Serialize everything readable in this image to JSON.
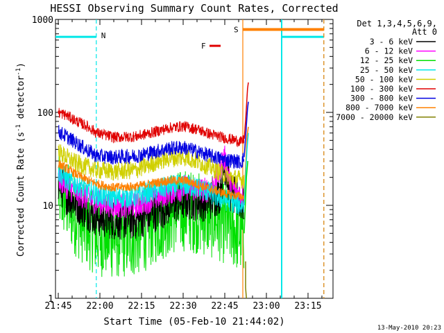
{
  "chart_data": {
    "type": "line",
    "title": "HESSI Observing Summary Count Rates, Corrected",
    "xlabel": "Start Time (05-Feb-10 21:44:02)",
    "ylabel_main": "Corrected Count Rate (s",
    "ylabel_sup1": "-1",
    "ylabel_mid": " detector",
    "ylabel_sup2": "-1",
    "ylabel_end": ")",
    "yscale": "log",
    "ylim": [
      1,
      1000
    ],
    "xlim_minutes": [
      -1,
      99
    ],
    "x_ticks": [
      {
        "m": 0,
        "label": "21:45"
      },
      {
        "m": 15,
        "label": "22:00"
      },
      {
        "m": 30,
        "label": "22:15"
      },
      {
        "m": 45,
        "label": "22:30"
      },
      {
        "m": 60,
        "label": "22:45"
      },
      {
        "m": 75,
        "label": "23:00"
      },
      {
        "m": 90,
        "label": "23:15"
      }
    ],
    "y_ticks": [
      {
        "v": 1,
        "label": "1"
      },
      {
        "v": 10,
        "label": "10"
      },
      {
        "v": 100,
        "label": "100"
      },
      {
        "v": 1000,
        "label": "1000"
      }
    ],
    "timestamp": "13-May-2010 20:23",
    "legend": {
      "header1": "Det 1,3,4,5,6,9,",
      "header2": "Att 0",
      "placement": "right",
      "entries": [
        {
          "label": "3 - 6 keV",
          "color": "#000000"
        },
        {
          "label": "6 - 12 keV",
          "color": "#ff00ff"
        },
        {
          "label": "12 - 25 keV",
          "color": "#00e000"
        },
        {
          "label": "25 - 50 keV",
          "color": "#00e8e8"
        },
        {
          "label": "50 - 100 keV",
          "color": "#d0d000"
        },
        {
          "label": "100 - 300 keV",
          "color": "#e00000"
        },
        {
          "label": "300 - 800 keV",
          "color": "#0000e0"
        },
        {
          "label": "800 - 7000 keV",
          "color": "#ff8000"
        },
        {
          "label": "7000 - 20000 keV",
          "color": "#808000"
        }
      ]
    },
    "annotations": {
      "night": {
        "label": "N",
        "color": "#00e8e8",
        "intervals": [
          [
            -1,
            13.7
          ],
          [
            80.5,
            95.7
          ]
        ],
        "level": 650
      },
      "saa": {
        "label": "S",
        "color": "#ff8000",
        "intervals": [
          [
            66.5,
            95.7
          ]
        ],
        "level": 780
      },
      "flare": {
        "label": "F",
        "color": "#e00000",
        "interval": [
          54.5,
          58.5
        ],
        "level": 520
      }
    },
    "series": [
      {
        "name": "3 - 6 keV",
        "color": "#000000",
        "noise": 0.22,
        "points": [
          [
            0,
            18
          ],
          [
            3,
            13
          ],
          [
            6,
            11
          ],
          [
            10,
            9
          ],
          [
            14,
            7.5
          ],
          [
            20,
            7
          ],
          [
            28,
            7
          ],
          [
            35,
            8.5
          ],
          [
            40,
            10
          ],
          [
            46,
            11.5
          ],
          [
            52,
            11
          ],
          [
            55,
            11.5
          ],
          [
            58,
            13
          ],
          [
            59,
            18
          ],
          [
            60,
            27
          ],
          [
            61,
            20
          ],
          [
            62,
            14
          ],
          [
            64,
            12
          ],
          [
            66,
            11
          ],
          [
            67,
            10
          ]
        ]
      },
      {
        "name": "6 - 12 keV",
        "color": "#ff00ff",
        "noise": 0.14,
        "points": [
          [
            0,
            20
          ],
          [
            3,
            16
          ],
          [
            6,
            14
          ],
          [
            10,
            12
          ],
          [
            14,
            11
          ],
          [
            20,
            10
          ],
          [
            28,
            10
          ],
          [
            35,
            12
          ],
          [
            40,
            14
          ],
          [
            46,
            15.5
          ],
          [
            52,
            14.5
          ],
          [
            55,
            15
          ],
          [
            58,
            22
          ],
          [
            59,
            30
          ],
          [
            60,
            32
          ],
          [
            61,
            24
          ],
          [
            62,
            17
          ],
          [
            64,
            14
          ],
          [
            66,
            13
          ],
          [
            67,
            12.5
          ]
        ]
      },
      {
        "name": "12 - 25 keV",
        "color": "#00e000",
        "noise": 0.45,
        "points": [
          [
            0,
            15
          ],
          [
            3,
            11
          ],
          [
            6,
            8
          ],
          [
            10,
            6
          ],
          [
            14,
            4.8
          ],
          [
            20,
            4.5
          ],
          [
            28,
            4.7
          ],
          [
            35,
            6.5
          ],
          [
            40,
            8
          ],
          [
            46,
            9
          ],
          [
            52,
            8
          ],
          [
            58,
            7
          ],
          [
            62,
            6
          ],
          [
            66,
            5
          ],
          [
            67,
            5
          ]
        ]
      },
      {
        "name": "25 - 50 keV",
        "color": "#00e8e8",
        "noise": 0.12,
        "points": [
          [
            0,
            23
          ],
          [
            3,
            19
          ],
          [
            6,
            17
          ],
          [
            10,
            15
          ],
          [
            14,
            13
          ],
          [
            20,
            12
          ],
          [
            28,
            12.5
          ],
          [
            35,
            14.5
          ],
          [
            40,
            16
          ],
          [
            46,
            16.5
          ],
          [
            52,
            15
          ],
          [
            58,
            12
          ],
          [
            62,
            11
          ],
          [
            66,
            10
          ],
          [
            67,
            10
          ]
        ]
      },
      {
        "name": "50 - 100 keV",
        "color": "#d0d000",
        "noise": 0.1,
        "points": [
          [
            0,
            38
          ],
          [
            3,
            33
          ],
          [
            6,
            29
          ],
          [
            10,
            26
          ],
          [
            14,
            24
          ],
          [
            20,
            23
          ],
          [
            28,
            24
          ],
          [
            35,
            29
          ],
          [
            40,
            32
          ],
          [
            46,
            33
          ],
          [
            52,
            28
          ],
          [
            58,
            23
          ],
          [
            62,
            20
          ],
          [
            66,
            19
          ],
          [
            67,
            19
          ]
        ]
      },
      {
        "name": "100 - 300 keV",
        "color": "#e00000",
        "noise": 0.06,
        "points": [
          [
            0,
            100
          ],
          [
            3,
            93
          ],
          [
            6,
            82
          ],
          [
            10,
            72
          ],
          [
            14,
            60
          ],
          [
            20,
            54
          ],
          [
            28,
            55
          ],
          [
            35,
            62
          ],
          [
            40,
            68
          ],
          [
            45,
            71
          ],
          [
            50,
            66
          ],
          [
            55,
            58
          ],
          [
            60,
            53
          ],
          [
            64,
            50
          ],
          [
            66,
            48
          ],
          [
            67,
            52
          ]
        ]
      },
      {
        "name": "300 - 800 keV",
        "color": "#0000e0",
        "noise": 0.08,
        "points": [
          [
            0,
            62
          ],
          [
            3,
            55
          ],
          [
            6,
            48
          ],
          [
            10,
            40
          ],
          [
            14,
            34
          ],
          [
            20,
            33
          ],
          [
            28,
            34
          ],
          [
            35,
            38
          ],
          [
            40,
            41
          ],
          [
            45,
            42
          ],
          [
            50,
            38
          ],
          [
            55,
            34
          ],
          [
            60,
            31
          ],
          [
            64,
            30
          ],
          [
            66,
            29
          ],
          [
            67,
            33
          ]
        ]
      },
      {
        "name": "800 - 7000 keV",
        "color": "#ff8000",
        "noise": 0.05,
        "points": [
          [
            0,
            28
          ],
          [
            3,
            25
          ],
          [
            6,
            22
          ],
          [
            10,
            19
          ],
          [
            14,
            17
          ],
          [
            20,
            15.5
          ],
          [
            28,
            16
          ],
          [
            35,
            17.5
          ],
          [
            40,
            18.5
          ],
          [
            46,
            18.5
          ],
          [
            52,
            16
          ],
          [
            58,
            14
          ],
          [
            62,
            13
          ],
          [
            66,
            12.5
          ],
          [
            67,
            12
          ]
        ]
      }
    ],
    "spikes": [
      {
        "name": "100 - 300 keV",
        "color": "#e00000",
        "points": [
          [
            67,
            52
          ],
          [
            67.6,
            90
          ],
          [
            68.2,
            180
          ],
          [
            68.5,
            210
          ]
        ]
      },
      {
        "name": "300 - 800 keV",
        "color": "#0000e0",
        "points": [
          [
            67,
            33
          ],
          [
            67.6,
            60
          ],
          [
            68.2,
            110
          ],
          [
            68.5,
            130
          ]
        ]
      },
      {
        "name": "800 - 7000 keV",
        "color": "#ff8000",
        "points": [
          [
            67,
            12
          ],
          [
            68,
            55
          ],
          [
            68.5,
            70
          ]
        ]
      },
      {
        "name": "25 - 50 keV",
        "color": "#00e8e8",
        "points": [
          [
            67,
            10
          ],
          [
            68,
            40
          ],
          [
            68.5,
            60
          ]
        ]
      },
      {
        "name": "12 - 25 keV",
        "color": "#00e000",
        "points": [
          [
            67,
            5
          ],
          [
            67.8,
            20
          ],
          [
            68.3,
            30
          ]
        ]
      },
      {
        "name": "7000 - 20000 keV",
        "color": "#808000",
        "points": [
          [
            67.5,
            2.5
          ],
          [
            67.5,
            1.3
          ],
          [
            67.8,
            1.0
          ]
        ]
      }
    ]
  }
}
